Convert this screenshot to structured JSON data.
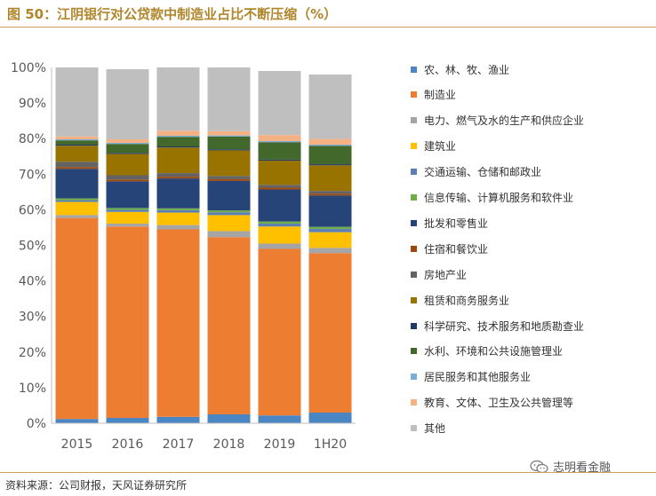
{
  "header": {
    "title": "图 50：江阴银行对公贷款中制造业占比不断压缩（%）"
  },
  "footer": {
    "source": "资料来源：公司财报，天风证券研究所",
    "watermark": "志明看金融"
  },
  "chart_data": {
    "type": "bar",
    "stacked": true,
    "categories": [
      "2015",
      "2016",
      "2017",
      "2018",
      "2019",
      "1H20"
    ],
    "ylim": [
      0,
      100
    ],
    "yticks": [
      "0%",
      "10%",
      "20%",
      "30%",
      "40%",
      "50%",
      "60%",
      "70%",
      "80%",
      "90%",
      "100%"
    ],
    "grid": false,
    "legend_position": "right",
    "series": [
      {
        "name": "农、林、牧、渔业",
        "color": "#4a86c4",
        "values": [
          1.2,
          1.5,
          1.8,
          2.5,
          2.2,
          3.0
        ]
      },
      {
        "name": "制造业",
        "color": "#ed7d31",
        "values": [
          56.5,
          53.8,
          52.7,
          49.8,
          46.8,
          44.8
        ]
      },
      {
        "name": "电力、燃气及水的生产和供应企业",
        "color": "#a5a5a5",
        "values": [
          0.8,
          0.8,
          1.2,
          1.7,
          1.5,
          1.5
        ]
      },
      {
        "name": "建筑业",
        "color": "#ffc000",
        "values": [
          3.7,
          3.3,
          3.5,
          4.5,
          4.8,
          4.4
        ]
      },
      {
        "name": "交通运输、仓储和邮政业",
        "color": "#5b7fb5",
        "values": [
          0.5,
          0.6,
          0.7,
          0.8,
          0.8,
          0.9
        ]
      },
      {
        "name": "信息传输、计算机服务和软件业",
        "color": "#70ad47",
        "values": [
          0.5,
          0.5,
          0.5,
          0.5,
          0.6,
          0.6
        ]
      },
      {
        "name": "批发和零售业",
        "color": "#264478",
        "values": [
          8.3,
          7.5,
          8.4,
          8.3,
          9.0,
          8.8
        ]
      },
      {
        "name": "住宿和餐饮业",
        "color": "#9e480e",
        "values": [
          0.5,
          0.5,
          0.5,
          0.5,
          0.5,
          0.5
        ]
      },
      {
        "name": "房地产业",
        "color": "#636363",
        "values": [
          1.5,
          1.2,
          1.0,
          0.9,
          0.8,
          0.8
        ]
      },
      {
        "name": "租赁和商务服务业",
        "color": "#997300",
        "values": [
          4.5,
          6.0,
          7.2,
          7.2,
          6.8,
          7.2
        ]
      },
      {
        "name": "科学研究、技术服务和地质勘查业",
        "color": "#1f3864",
        "values": [
          0.3,
          0.3,
          0.3,
          0.3,
          0.3,
          0.3
        ]
      },
      {
        "name": "水利、环境和公共设施管理业",
        "color": "#43682b",
        "values": [
          1.2,
          2.5,
          2.7,
          3.6,
          4.9,
          5.2
        ]
      },
      {
        "name": "居民服务和其他服务业",
        "color": "#7aaed8",
        "values": [
          0.3,
          0.3,
          0.3,
          0.3,
          0.3,
          0.3
        ]
      },
      {
        "name": "教育、文体、卫生及公共管理等",
        "color": "#f4b183",
        "values": [
          0.8,
          1.0,
          1.4,
          1.2,
          1.7,
          1.6
        ]
      },
      {
        "name": "其他",
        "color": "#bfbfbf",
        "values": [
          19.4,
          19.7,
          17.8,
          17.9,
          18.0,
          18.1
        ]
      }
    ]
  }
}
